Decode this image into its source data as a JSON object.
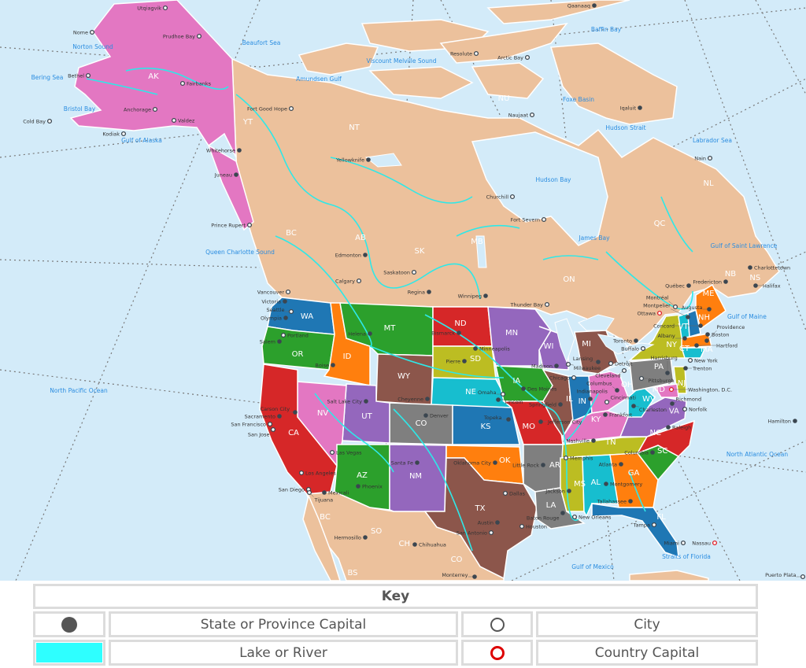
{
  "map": {
    "colors": {
      "ocean": "#d3ebf9",
      "canada_mexico": "#ecc19c",
      "alaska": "#e377c2",
      "water": "#2ee8e8",
      "water_label": "#2b8de0",
      "capital": "#3b4650",
      "country_capital": "#e0202a"
    },
    "states": [
      {
        "abbr": "WA",
        "color": "#1f77b4"
      },
      {
        "abbr": "OR",
        "color": "#2ca02c"
      },
      {
        "abbr": "ID",
        "color": "#ff7f0e"
      },
      {
        "abbr": "MT",
        "color": "#2ca02c"
      },
      {
        "abbr": "WY",
        "color": "#8c564b"
      },
      {
        "abbr": "ND",
        "color": "#d62728"
      },
      {
        "abbr": "SD",
        "color": "#bcbd22"
      },
      {
        "abbr": "NE",
        "color": "#17becf"
      },
      {
        "abbr": "CO",
        "color": "#7f7f7f"
      },
      {
        "abbr": "KS",
        "color": "#1f77b4"
      },
      {
        "abbr": "UT",
        "color": "#9467bd"
      },
      {
        "abbr": "NV",
        "color": "#e377c2"
      },
      {
        "abbr": "CA",
        "color": "#d62728"
      },
      {
        "abbr": "AZ",
        "color": "#2ca02c"
      },
      {
        "abbr": "NM",
        "color": "#9467bd"
      },
      {
        "abbr": "OK",
        "color": "#ff7f0e"
      },
      {
        "abbr": "TX",
        "color": "#8c564b"
      },
      {
        "abbr": "MN",
        "color": "#9467bd"
      },
      {
        "abbr": "WI",
        "color": "#9467bd"
      },
      {
        "abbr": "IA",
        "color": "#2ca02c"
      },
      {
        "abbr": "MO",
        "color": "#d62728"
      },
      {
        "abbr": "IL",
        "color": "#8c564b"
      },
      {
        "abbr": "IN",
        "color": "#1f77b4"
      },
      {
        "abbr": "MI",
        "color": "#8c564b"
      },
      {
        "abbr": "OH",
        "color": "#e377c2"
      },
      {
        "abbr": "KY",
        "color": "#e377c2"
      },
      {
        "abbr": "TN",
        "color": "#bcbd22"
      },
      {
        "abbr": "AR",
        "color": "#7f7f7f"
      },
      {
        "abbr": "LA",
        "color": "#7f7f7f"
      },
      {
        "abbr": "MS",
        "color": "#bcbd22"
      },
      {
        "abbr": "AL",
        "color": "#17becf"
      },
      {
        "abbr": "GA",
        "color": "#ff7f0e"
      },
      {
        "abbr": "FL",
        "color": "#1f77b4"
      },
      {
        "abbr": "SC",
        "color": "#2ca02c"
      },
      {
        "abbr": "NC",
        "color": "#d62728"
      },
      {
        "abbr": "VA",
        "color": "#9467bd"
      },
      {
        "abbr": "WV",
        "color": "#17becf"
      },
      {
        "abbr": "PA",
        "color": "#7f7f7f"
      },
      {
        "abbr": "NY",
        "color": "#bcbd22"
      },
      {
        "abbr": "VT",
        "color": "#17becf"
      },
      {
        "abbr": "NH",
        "color": "#1f77b4"
      },
      {
        "abbr": "ME",
        "color": "#ff7f0e"
      },
      {
        "abbr": "MA",
        "color": "#ff7f0e"
      },
      {
        "abbr": "CT",
        "color": "#17becf"
      },
      {
        "abbr": "NJ",
        "color": "#bcbd22"
      },
      {
        "abbr": "MD",
        "color": "#e377c2"
      },
      {
        "abbr": "AK",
        "color": "#e377c2"
      }
    ],
    "region_labels": [
      "YT",
      "NT",
      "NU",
      "BC",
      "AB",
      "SK",
      "MB",
      "ON",
      "QC",
      "NL",
      "NB",
      "NS",
      "BC",
      "SO",
      "CH",
      "CO",
      "BS"
    ],
    "cities": [
      {
        "name": "Utqiagvik",
        "type": "city"
      },
      {
        "name": "Nome",
        "type": "city"
      },
      {
        "name": "Prudhoe Bay",
        "type": "city"
      },
      {
        "name": "Bethel",
        "type": "city"
      },
      {
        "name": "Fairbanks",
        "type": "city"
      },
      {
        "name": "Anchorage",
        "type": "city"
      },
      {
        "name": "Valdez",
        "type": "city"
      },
      {
        "name": "Cold Bay",
        "type": "city"
      },
      {
        "name": "Kodiak",
        "type": "city"
      },
      {
        "name": "Whitehorse",
        "type": "capital"
      },
      {
        "name": "Juneau",
        "type": "capital"
      },
      {
        "name": "Fort Good Hope",
        "type": "city"
      },
      {
        "name": "Yellowknife",
        "type": "capital"
      },
      {
        "name": "Resolute",
        "type": "city"
      },
      {
        "name": "Arctic Bay",
        "type": "city"
      },
      {
        "name": "Naujaat",
        "type": "city"
      },
      {
        "name": "Qaanaaq",
        "type": "capital"
      },
      {
        "name": "Iqaluit",
        "type": "capital"
      },
      {
        "name": "Nain",
        "type": "city"
      },
      {
        "name": "Churchill",
        "type": "city"
      },
      {
        "name": "Fort Severn",
        "type": "city"
      },
      {
        "name": "Prince Rupert",
        "type": "city"
      },
      {
        "name": "Edmonton",
        "type": "capital"
      },
      {
        "name": "Calgary",
        "type": "city"
      },
      {
        "name": "Saskatoon",
        "type": "city"
      },
      {
        "name": "Regina",
        "type": "capital"
      },
      {
        "name": "Winnipeg",
        "type": "capital"
      },
      {
        "name": "Thunder Bay",
        "type": "city"
      },
      {
        "name": "Vancouver",
        "type": "city"
      },
      {
        "name": "Victoria",
        "type": "capital"
      },
      {
        "name": "Seattle",
        "type": "city"
      },
      {
        "name": "Olympia",
        "type": "capital"
      },
      {
        "name": "Portland",
        "type": "city"
      },
      {
        "name": "Salem",
        "type": "capital"
      },
      {
        "name": "Helena",
        "type": "capital"
      },
      {
        "name": "Boise",
        "type": "capital"
      },
      {
        "name": "Bismarck",
        "type": "capital"
      },
      {
        "name": "Pierre",
        "type": "capital"
      },
      {
        "name": "Salt Lake City",
        "type": "capital"
      },
      {
        "name": "Cheyenne",
        "type": "capital"
      },
      {
        "name": "Denver",
        "type": "capital"
      },
      {
        "name": "Carson City",
        "type": "capital"
      },
      {
        "name": "Sacramento",
        "type": "capital"
      },
      {
        "name": "San Francisco",
        "type": "city"
      },
      {
        "name": "San Jose",
        "type": "city"
      },
      {
        "name": "Las Vegas",
        "type": "city"
      },
      {
        "name": "Los Angeles",
        "type": "city"
      },
      {
        "name": "San Diego",
        "type": "city"
      },
      {
        "name": "Tijuana",
        "type": "city"
      },
      {
        "name": "Mexicali",
        "type": "capital"
      },
      {
        "name": "Phoenix",
        "type": "capital"
      },
      {
        "name": "Santa Fe",
        "type": "capital"
      },
      {
        "name": "Oklahoma City",
        "type": "capital"
      },
      {
        "name": "Little Rock",
        "type": "capital"
      },
      {
        "name": "Memphis",
        "type": "city"
      },
      {
        "name": "Dallas",
        "type": "city"
      },
      {
        "name": "Austin",
        "type": "capital"
      },
      {
        "name": "Houston",
        "type": "city"
      },
      {
        "name": "San Antonio",
        "type": "city"
      },
      {
        "name": "Hermosillo",
        "type": "capital"
      },
      {
        "name": "Chihuahua",
        "type": "capital"
      },
      {
        "name": "Monterrey",
        "type": "capital"
      },
      {
        "name": "Lincoln",
        "type": "capital"
      },
      {
        "name": "Omaha",
        "type": "city"
      },
      {
        "name": "Des Moines",
        "type": "capital"
      },
      {
        "name": "Topeka",
        "type": "capital"
      },
      {
        "name": "Jefferson City",
        "type": "capital"
      },
      {
        "name": "Minneapolis",
        "type": "capital"
      },
      {
        "name": "Madison",
        "type": "capital"
      },
      {
        "name": "Milwaukee",
        "type": "city"
      },
      {
        "name": "Chicago",
        "type": "city"
      },
      {
        "name": "Springfield",
        "type": "capital"
      },
      {
        "name": "Indianapolis",
        "type": "capital"
      },
      {
        "name": "Lansing",
        "type": "capital"
      },
      {
        "name": "Detroit",
        "type": "city"
      },
      {
        "name": "Cleveland",
        "type": "city"
      },
      {
        "name": "Columbus",
        "type": "capital"
      },
      {
        "name": "Cincinnati",
        "type": "city"
      },
      {
        "name": "Frankfort",
        "type": "capital"
      },
      {
        "name": "Charleston",
        "type": "capital"
      },
      {
        "name": "Pittsburgh",
        "type": "city"
      },
      {
        "name": "Nashville",
        "type": "capital"
      },
      {
        "name": "Atlanta",
        "type": "capital"
      },
      {
        "name": "Columbia",
        "type": "capital"
      },
      {
        "name": "Raleigh",
        "type": "capital"
      },
      {
        "name": "Richmond",
        "type": "capital"
      },
      {
        "name": "Norfolk",
        "type": "city"
      },
      {
        "name": "Washington, D.C.",
        "type": "country"
      },
      {
        "name": "Harrisburg",
        "type": "capital"
      },
      {
        "name": "Trenton",
        "type": "capital"
      },
      {
        "name": "New York",
        "type": "city"
      },
      {
        "name": "Albany",
        "type": "capital"
      },
      {
        "name": "Boston",
        "type": "capital"
      },
      {
        "name": "Hartford",
        "type": "capital"
      },
      {
        "name": "Providence",
        "type": "capital"
      },
      {
        "name": "Concord",
        "type": "capital"
      },
      {
        "name": "Montpelier",
        "type": "capital"
      },
      {
        "name": "Augusta",
        "type": "capital"
      },
      {
        "name": "Toronto",
        "type": "capital"
      },
      {
        "name": "Buffalo",
        "type": "city"
      },
      {
        "name": "Ottawa",
        "type": "country"
      },
      {
        "name": "Montréal",
        "type": "city"
      },
      {
        "name": "Québec",
        "type": "capital"
      },
      {
        "name": "Fredericton",
        "type": "capital"
      },
      {
        "name": "Halifax",
        "type": "capital"
      },
      {
        "name": "Charlottetown",
        "type": "capital"
      },
      {
        "name": "Montgomery",
        "type": "capital"
      },
      {
        "name": "Jackson",
        "type": "capital"
      },
      {
        "name": "Baton Rouge",
        "type": "capital"
      },
      {
        "name": "New Orleans",
        "type": "city"
      },
      {
        "name": "Tallahassee",
        "type": "capital"
      },
      {
        "name": "Tampa",
        "type": "city"
      },
      {
        "name": "Miami",
        "type": "city"
      },
      {
        "name": "Nassau",
        "type": "country"
      },
      {
        "name": "Hamilton",
        "type": "capital"
      },
      {
        "name": "Puerto Plata",
        "type": "city"
      }
    ],
    "water_labels": [
      "Bering Sea",
      "Bristol Bay",
      "Gulf of Alaska",
      "Norton Sound",
      "Beaufort Sea",
      "Amundsen Gulf",
      "Viscount Melville Sound",
      "Baffin Bay",
      "Foxe Basin",
      "Hudson Strait",
      "Hudson Bay",
      "Labrador Sea",
      "James Bay",
      "Gulf of Saint Lawrence",
      "Gulf of Maine",
      "Queen Charlotte Sound",
      "North Pacific Ocean",
      "North Atlantic Ocean",
      "Gulf of Mexico",
      "Straits of Florida"
    ]
  },
  "key": {
    "title": "Key",
    "items": [
      {
        "symbol": "filled-dark-circle",
        "label": "State or Province Capital"
      },
      {
        "symbol": "hollow-circle",
        "label": "City"
      },
      {
        "symbol": "cyan-swatch",
        "label": "Lake or River"
      },
      {
        "symbol": "red-hollow-circle",
        "label": "Country Capital"
      }
    ]
  }
}
